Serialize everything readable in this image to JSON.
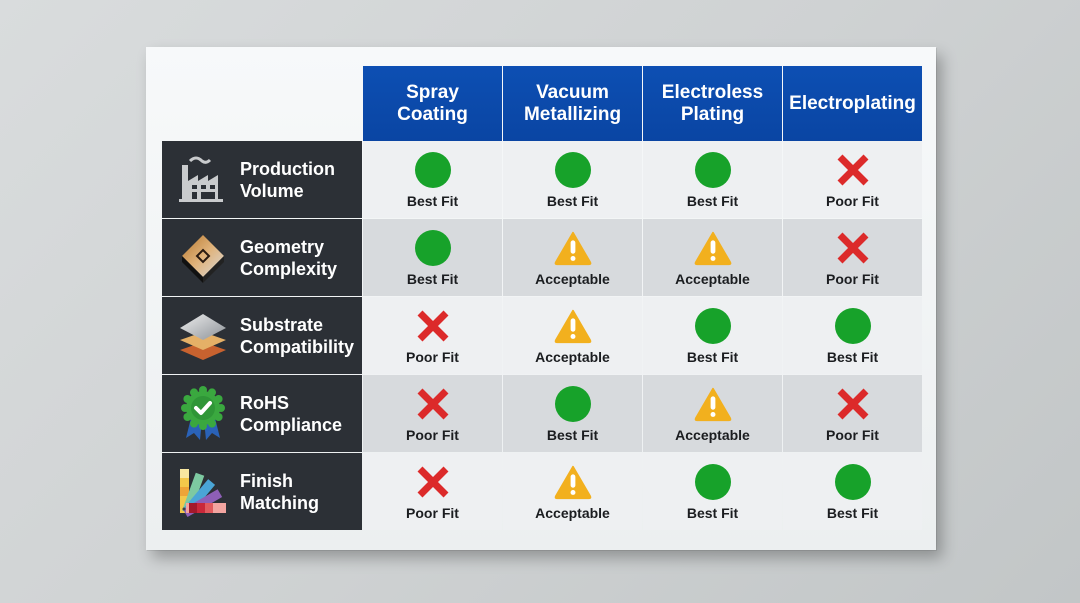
{
  "columns": [
    {
      "label": "Spray\nCoating"
    },
    {
      "label": "Vacuum\nMetallizing"
    },
    {
      "label": "Electroless\nPlating"
    },
    {
      "label": "Electroplating"
    }
  ],
  "rows": [
    {
      "label": "Production\nVolume",
      "icon": "factory-icon",
      "cells": [
        {
          "rating": "Best Fit",
          "icon": "green-circle-icon"
        },
        {
          "rating": "Best Fit",
          "icon": "green-circle-icon"
        },
        {
          "rating": "Best Fit",
          "icon": "green-circle-icon"
        },
        {
          "rating": "Poor Fit",
          "icon": "red-x-icon"
        }
      ]
    },
    {
      "label": "Geometry\nComplexity",
      "icon": "geometry-diamond-icon",
      "cells": [
        {
          "rating": "Best Fit",
          "icon": "green-circle-icon"
        },
        {
          "rating": "Acceptable",
          "icon": "warning-triangle-icon"
        },
        {
          "rating": "Acceptable",
          "icon": "warning-triangle-icon"
        },
        {
          "rating": "Poor Fit",
          "icon": "red-x-icon"
        }
      ]
    },
    {
      "label": "Substrate\nCompatibility",
      "icon": "layers-icon",
      "cells": [
        {
          "rating": "Poor Fit",
          "icon": "red-x-icon"
        },
        {
          "rating": "Acceptable",
          "icon": "warning-triangle-icon"
        },
        {
          "rating": "Best Fit",
          "icon": "green-circle-icon"
        },
        {
          "rating": "Best Fit",
          "icon": "green-circle-icon"
        }
      ]
    },
    {
      "label": "RoHS\nCompliance",
      "icon": "certified-badge-icon",
      "cells": [
        {
          "rating": "Poor Fit",
          "icon": "red-x-icon"
        },
        {
          "rating": "Best Fit",
          "icon": "green-circle-icon"
        },
        {
          "rating": "Acceptable",
          "icon": "warning-triangle-icon"
        },
        {
          "rating": "Poor Fit",
          "icon": "red-x-icon"
        }
      ]
    },
    {
      "label": "Finish\nMatching",
      "icon": "color-swatch-fan-icon",
      "cells": [
        {
          "rating": "Poor Fit",
          "icon": "red-x-icon"
        },
        {
          "rating": "Acceptable",
          "icon": "warning-triangle-icon"
        },
        {
          "rating": "Best Fit",
          "icon": "green-circle-icon"
        },
        {
          "rating": "Best Fit",
          "icon": "green-circle-icon"
        }
      ]
    }
  ],
  "legend_colors": {
    "header_blue": "#0d4fb3",
    "label_dark": "#2c3036",
    "best_fit_green": "#17a22a",
    "acceptable_amber": "#f2b01e",
    "poor_fit_red": "#dc2a2a"
  }
}
